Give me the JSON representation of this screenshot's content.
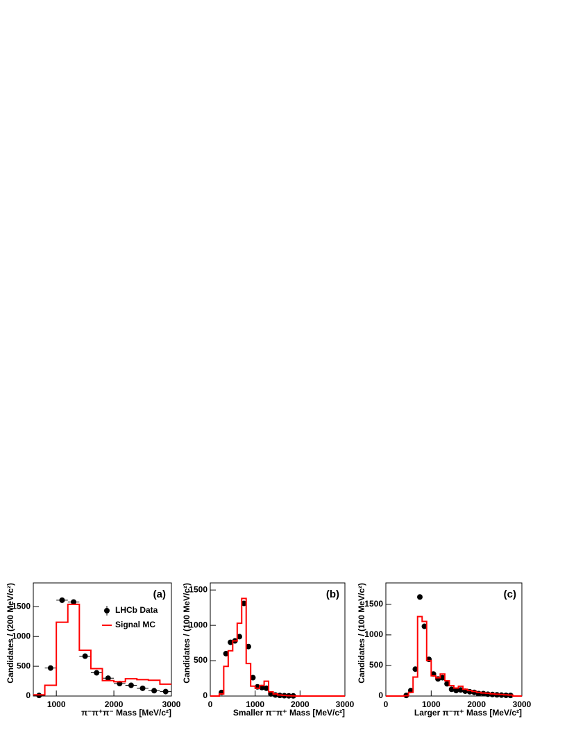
{
  "chart_data": [
    {
      "type": "histogram",
      "panel_label": "(a)",
      "x_label": "π⁻π⁺π⁻ Mass [MeV/c²]",
      "y_label": "Candidates / (200 MeV/c²)",
      "xlim": [
        600,
        3000
      ],
      "xticks": [
        1000,
        2000,
        3000
      ],
      "ylim": [
        0,
        1900
      ],
      "yticks": [
        0,
        500,
        1000,
        1500
      ],
      "legend": "top-right",
      "series": [
        {
          "name": "LHCb Data",
          "color": "#000000",
          "x_error": 100,
          "x": [
            700,
            900,
            1100,
            1300,
            1500,
            1700,
            1900,
            2100,
            2300,
            2500,
            2700,
            2900
          ],
          "values": [
            10,
            470,
            1610,
            1580,
            670,
            390,
            300,
            210,
            180,
            130,
            90,
            75
          ]
        },
        {
          "name": "Signal MC",
          "color": "#ff0000",
          "bins": [
            600,
            800,
            1000,
            1200,
            1400,
            1600,
            1800,
            2000,
            2200,
            2400,
            2600,
            2800,
            3000
          ],
          "values": [
            20,
            180,
            1240,
            1540,
            770,
            460,
            260,
            240,
            290,
            275,
            265,
            200
          ]
        }
      ]
    },
    {
      "type": "histogram",
      "panel_label": "(b)",
      "x_label": "Smaller π⁻π⁺ Mass [MeV/c²]",
      "y_label": "Candidates / (100 MeV/c²)",
      "xlim": [
        0,
        3000
      ],
      "xticks": [
        0,
        1000,
        2000,
        3000
      ],
      "ylim": [
        0,
        1600
      ],
      "yticks": [
        0,
        500,
        1000,
        1500
      ],
      "series": [
        {
          "color": "#000000",
          "x_error": 50,
          "x": [
            250,
            350,
            450,
            550,
            650,
            750,
            850,
            950,
            1050,
            1150,
            1250,
            1350,
            1450,
            1550,
            1650,
            1750,
            1850
          ],
          "values": [
            50,
            600,
            760,
            780,
            840,
            1310,
            700,
            260,
            130,
            120,
            110,
            30,
            15,
            8,
            5,
            3,
            2
          ]
        },
        {
          "color": "#ff0000",
          "bins": [
            0,
            100,
            200,
            300,
            400,
            500,
            600,
            700,
            800,
            900,
            1000,
            1100,
            1200,
            1300,
            1400,
            1500,
            1600,
            1700,
            1800,
            1900,
            2000,
            2100,
            2200,
            2300,
            2400,
            2500,
            2600,
            2700,
            2800,
            2900,
            3000
          ],
          "values": [
            0,
            0,
            30,
            420,
            640,
            780,
            1030,
            1380,
            460,
            140,
            110,
            150,
            210,
            60,
            30,
            15,
            10,
            5,
            3,
            0,
            0,
            0,
            0,
            0,
            0,
            0,
            0,
            0,
            0,
            0
          ]
        }
      ]
    },
    {
      "type": "histogram",
      "panel_label": "(c)",
      "x_label": "Larger π⁻π⁺ Mass [MeV/c²]",
      "y_label": "Candidates / (100 MeV/c²)",
      "xlim": [
        0,
        3000
      ],
      "xticks": [
        0,
        1000,
        2000,
        3000
      ],
      "ylim": [
        0,
        1850
      ],
      "yticks": [
        0,
        500,
        1000,
        1500
      ],
      "series": [
        {
          "color": "#000000",
          "x_error": 50,
          "x": [
            450,
            550,
            650,
            750,
            850,
            950,
            1050,
            1150,
            1250,
            1350,
            1450,
            1550,
            1650,
            1750,
            1850,
            1950,
            2050,
            2150,
            2250,
            2350,
            2450,
            2550,
            2650,
            2750
          ],
          "values": [
            10,
            90,
            440,
            1620,
            1140,
            600,
            360,
            280,
            300,
            200,
            110,
            90,
            100,
            80,
            70,
            60,
            40,
            40,
            30,
            25,
            20,
            15,
            12,
            10
          ]
        },
        {
          "color": "#ff0000",
          "bins": [
            0,
            100,
            200,
            300,
            400,
            500,
            600,
            700,
            800,
            900,
            1000,
            1100,
            1200,
            1300,
            1400,
            1500,
            1600,
            1700,
            1800,
            1900,
            2000,
            2100,
            2200,
            2300,
            2400,
            2500,
            2600,
            2700,
            2800,
            2900,
            3000
          ],
          "values": [
            0,
            0,
            0,
            0,
            5,
            60,
            310,
            1300,
            1220,
            580,
            330,
            300,
            360,
            250,
            170,
            130,
            160,
            110,
            90,
            75,
            60,
            50,
            45,
            35,
            30,
            25,
            20,
            15,
            0,
            0
          ]
        }
      ]
    }
  ]
}
